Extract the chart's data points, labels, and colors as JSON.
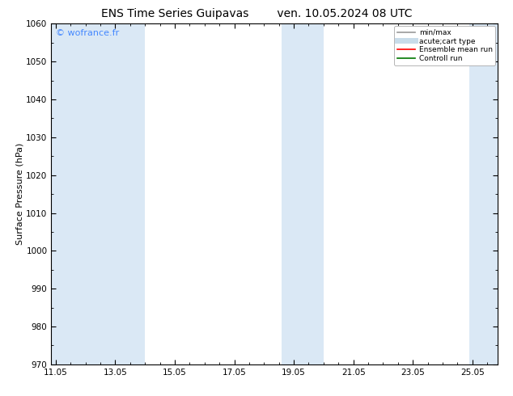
{
  "title_left": "ENS Time Series Guipavas",
  "title_right": "ven. 10.05.2024 08 UTC",
  "ylabel": "Surface Pressure (hPa)",
  "ylim": [
    970,
    1060
  ],
  "yticks": [
    970,
    980,
    990,
    1000,
    1010,
    1020,
    1030,
    1040,
    1050,
    1060
  ],
  "xlim_start": 10.9,
  "xlim_end": 25.9,
  "xticks": [
    11.05,
    13.05,
    15.05,
    17.05,
    19.05,
    21.05,
    23.05,
    25.05
  ],
  "xtick_labels": [
    "11.05",
    "13.05",
    "15.05",
    "17.05",
    "19.05",
    "21.05",
    "23.05",
    "25.05"
  ],
  "bg_color": "#ffffff",
  "plot_bg_color": "#ffffff",
  "shaded_bands": [
    {
      "x_start": 10.9,
      "x_end": 12.15,
      "color": "#dae8f5"
    },
    {
      "x_start": 12.15,
      "x_end": 14.05,
      "color": "#dae8f5"
    },
    {
      "x_start": 18.65,
      "x_end": 19.35,
      "color": "#dae8f5"
    },
    {
      "x_start": 19.35,
      "x_end": 20.05,
      "color": "#dae8f5"
    },
    {
      "x_start": 24.95,
      "x_end": 25.9,
      "color": "#dae8f5"
    }
  ],
  "watermark": "© wofrance.fr",
  "watermark_color": "#4488ff",
  "legend_entries": [
    {
      "label": "min/max",
      "color": "#999999",
      "lw": 1.2,
      "style": "solid"
    },
    {
      "label": "acute;cart type",
      "color": "#c8dcea",
      "lw": 5,
      "style": "solid"
    },
    {
      "label": "Ensemble mean run",
      "color": "#ff0000",
      "lw": 1.2,
      "style": "solid"
    },
    {
      "label": "Controll run",
      "color": "#007700",
      "lw": 1.2,
      "style": "solid"
    }
  ],
  "title_fontsize": 10,
  "axis_label_fontsize": 8,
  "tick_fontsize": 7.5,
  "watermark_fontsize": 8
}
